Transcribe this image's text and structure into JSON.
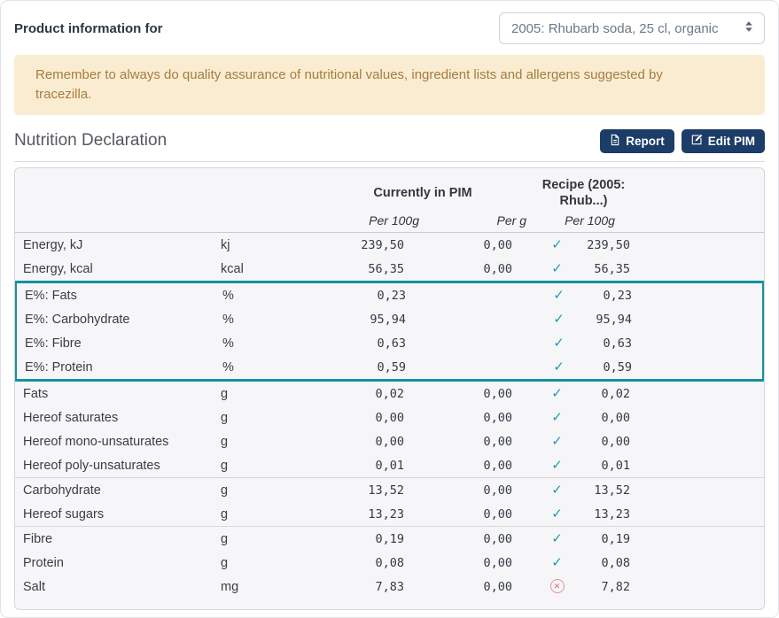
{
  "header": {
    "label": "Product information for",
    "product_select": {
      "value": "2005: Rhubarb soda, 25 cl, organic"
    }
  },
  "alert": {
    "text": "Remember to always do quality assurance of nutritional values, ingredient lists and allergens suggested by tracezilla."
  },
  "section": {
    "title": "Nutrition Declaration",
    "report_button": "Report",
    "edit_button": "Edit PIM"
  },
  "table": {
    "col_groups": {
      "pim": "Currently in PIM",
      "recipe": "Recipe (2005: Rhub...)"
    },
    "subheaders": {
      "pim_per100g": "Per 100g",
      "pim_perg": "Per g",
      "recipe_per100g": "Per 100g"
    },
    "groups": [
      {
        "highlight": false,
        "rows": [
          {
            "label": "Energy, kJ",
            "unit": "kj",
            "per100g": "239,50",
            "perg": "0,00",
            "status": "check",
            "recipe": "239,50"
          },
          {
            "label": "Energy, kcal",
            "unit": "kcal",
            "per100g": "56,35",
            "perg": "0,00",
            "status": "check",
            "recipe": "56,35"
          }
        ]
      },
      {
        "highlight": true,
        "rows": [
          {
            "label": "E%: Fats",
            "unit": "%",
            "per100g": "0,23",
            "perg": "",
            "status": "check",
            "recipe": "0,23"
          },
          {
            "label": "E%: Carbohydrate",
            "unit": "%",
            "per100g": "95,94",
            "perg": "",
            "status": "check",
            "recipe": "95,94"
          },
          {
            "label": "E%: Fibre",
            "unit": "%",
            "per100g": "0,63",
            "perg": "",
            "status": "check",
            "recipe": "0,63"
          },
          {
            "label": "E%: Protein",
            "unit": "%",
            "per100g": "0,59",
            "perg": "",
            "status": "check",
            "recipe": "0,59"
          }
        ]
      },
      {
        "highlight": false,
        "rows": [
          {
            "label": "Fats",
            "unit": "g",
            "per100g": "0,02",
            "perg": "0,00",
            "status": "check",
            "recipe": "0,02"
          },
          {
            "label": "Hereof saturates",
            "unit": "g",
            "per100g": "0,00",
            "perg": "0,00",
            "status": "check",
            "recipe": "0,00"
          },
          {
            "label": "Hereof mono-unsaturates",
            "unit": "g",
            "per100g": "0,00",
            "perg": "0,00",
            "status": "check",
            "recipe": "0,00"
          },
          {
            "label": "Hereof poly-unsaturates",
            "unit": "g",
            "per100g": "0,01",
            "perg": "0,00",
            "status": "check",
            "recipe": "0,01"
          }
        ]
      },
      {
        "highlight": false,
        "rows": [
          {
            "label": "Carbohydrate",
            "unit": "g",
            "per100g": "13,52",
            "perg": "0,00",
            "status": "check",
            "recipe": "13,52"
          },
          {
            "label": "Hereof sugars",
            "unit": "g",
            "per100g": "13,23",
            "perg": "0,00",
            "status": "check",
            "recipe": "13,23"
          }
        ]
      },
      {
        "highlight": false,
        "rows": [
          {
            "label": "Fibre",
            "unit": "g",
            "per100g": "0,19",
            "perg": "0,00",
            "status": "check",
            "recipe": "0,19"
          },
          {
            "label": "Protein",
            "unit": "g",
            "per100g": "0,08",
            "perg": "0,00",
            "status": "check",
            "recipe": "0,08"
          },
          {
            "label": "Salt",
            "unit": "mg",
            "per100g": "7,83",
            "perg": "0,00",
            "status": "cross",
            "recipe": "7,82"
          }
        ]
      }
    ]
  },
  "colors": {
    "accent_teal": "#13929e",
    "check_icon": "#1a9fa8",
    "cross_icon": "#d66a74",
    "button_bg": "#1b3d68",
    "banner_bg": "#faecd1",
    "banner_text": "#a67c3f"
  }
}
